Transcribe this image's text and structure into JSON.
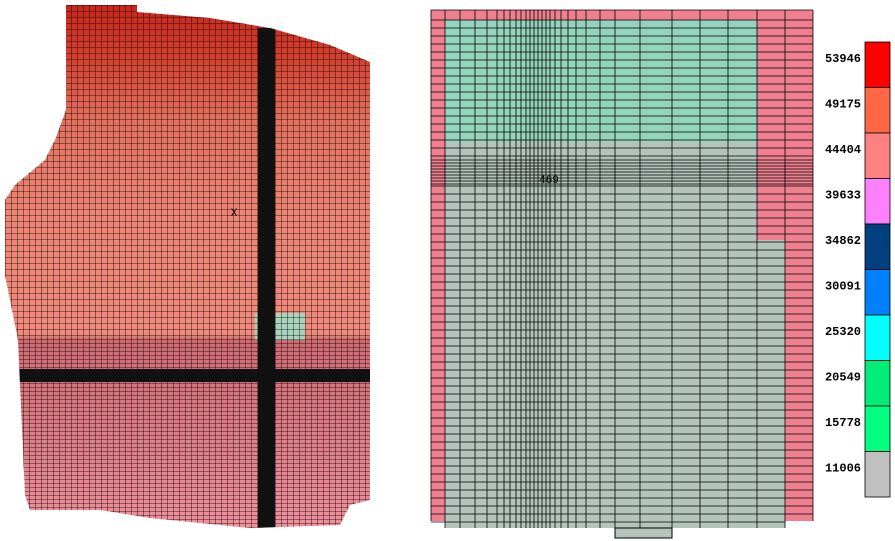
{
  "map_left": {
    "marker": "X"
  },
  "map_right": {
    "marker": "469"
  },
  "legend": {
    "items": [
      {
        "value": 53946,
        "color": "#ff0000"
      },
      {
        "value": 49175,
        "color": "#ff6644"
      },
      {
        "value": 44404,
        "color": "#ff8080"
      },
      {
        "value": 39633,
        "color": "#ff80ff"
      },
      {
        "value": 34862,
        "color": "#004080"
      },
      {
        "value": 30091,
        "color": "#0080ff"
      },
      {
        "value": 25320,
        "color": "#00ffff"
      },
      {
        "value": 20549,
        "color": "#00ee77"
      },
      {
        "value": 15778,
        "color": "#00ff80"
      },
      {
        "value": 11006,
        "color": "#c0c0c0"
      }
    ]
  }
}
